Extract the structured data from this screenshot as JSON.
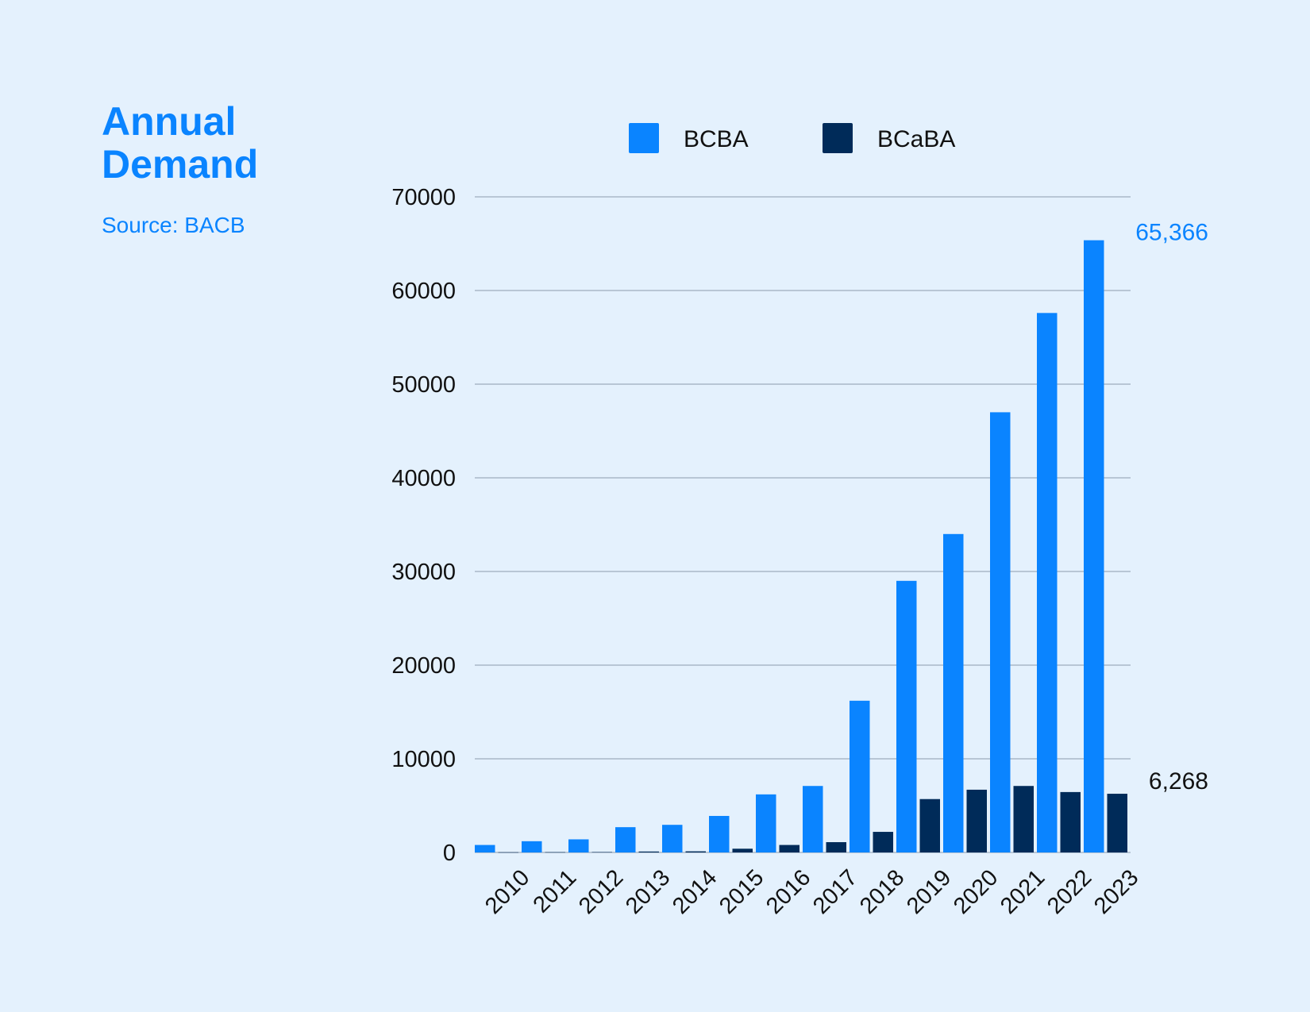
{
  "header": {
    "title": "Annual\nDemand",
    "source": "Source: BACB"
  },
  "colors": {
    "background": "#e4f1fd",
    "accent": "#0a84ff",
    "bcba": "#0a84ff",
    "bcaba": "#002b59",
    "grid": "#a9b8c8"
  },
  "chart_data": {
    "type": "bar",
    "categories": [
      "2010",
      "2011",
      "2012",
      "2013",
      "2014",
      "2015",
      "2016",
      "2017",
      "2018",
      "2019",
      "2020",
      "2021",
      "2022",
      "2023"
    ],
    "series": [
      {
        "name": "BCBA",
        "values": [
          800,
          1200,
          1400,
          2700,
          2950,
          3900,
          6200,
          7100,
          16200,
          29000,
          34000,
          47000,
          57600,
          65366
        ]
      },
      {
        "name": "BCaBA",
        "values": [
          20,
          30,
          40,
          100,
          120,
          400,
          800,
          1100,
          2200,
          5700,
          6700,
          7100,
          6450,
          6268
        ]
      }
    ],
    "ylim": [
      0,
      70000
    ],
    "yticks": [
      0,
      10000,
      20000,
      30000,
      40000,
      50000,
      60000,
      70000
    ],
    "grid": true,
    "legend": "top",
    "annotations": [
      {
        "series": "BCBA",
        "category": "2023",
        "text": "65,366"
      },
      {
        "series": "BCaBA",
        "category": "2023",
        "text": "6,268"
      }
    ]
  }
}
